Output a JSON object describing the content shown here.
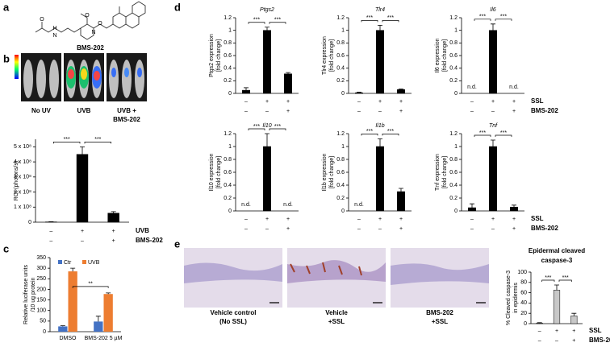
{
  "panel_labels": [
    "a",
    "b",
    "c",
    "d",
    "e"
  ],
  "structure": {
    "name": "BMS-202",
    "atoms": [
      "O",
      "N",
      "H",
      "O",
      "N",
      "O"
    ]
  },
  "b_images": [
    [
      "No UV"
    ],
    [
      "UVB"
    ],
    [
      "UVB +",
      "BMS-202"
    ]
  ],
  "e_images": [
    [
      "Vehicle control",
      "(No SSL)"
    ],
    [
      "Vehicle",
      "+SSL"
    ],
    [
      "BMS-202",
      "+SSL"
    ]
  ],
  "chart_data": [
    {
      "type": "bar",
      "y_label": [
        "ROI (photons/s)"
      ],
      "color": "#000000",
      "values": [
        2000000,
        450000000,
        60000000
      ],
      "errors": [
        1000000,
        50000000,
        10000000
      ],
      "ylim": [
        0,
        550000000
      ],
      "yticks": [
        0,
        {
          "value": 100000000,
          "label": "1 x 10⁸"
        },
        {
          "value": 200000000,
          "label": "2 x 10⁸"
        },
        {
          "value": 300000000,
          "label": "3 x 10⁸"
        },
        {
          "value": 400000000,
          "label": "4 x 10⁸"
        },
        {
          "value": 500000000,
          "label": "5 x 10⁸"
        }
      ],
      "annotations": [
        "***",
        "***"
      ],
      "conditions": [
        {
          "name": "UVB",
          "signs": [
            "–",
            "+",
            "+"
          ]
        },
        {
          "name": "BMS-202",
          "signs": [
            "–",
            "–",
            "+"
          ]
        }
      ]
    },
    {
      "type": "bar",
      "y_label": [
        "Relative luciferase units",
        "/10 ug protein"
      ],
      "categories": [
        "DMSO",
        "BMS-202 5 µM"
      ],
      "series": [
        {
          "name": "Ctr",
          "color": "#4472c4",
          "values": [
            25,
            48
          ],
          "errors": [
            3,
            25
          ]
        },
        {
          "name": "UVB",
          "color": "#ed7d31",
          "values": [
            285,
            178
          ],
          "errors": [
            15,
            5
          ]
        }
      ],
      "ylim": [
        0,
        350
      ],
      "yticks": [
        0,
        50,
        100,
        150,
        200,
        250,
        300,
        350
      ],
      "annotations": [
        "**"
      ]
    },
    {
      "type": "bar",
      "title": "Ptgs2",
      "y_label": [
        "Ptgs2 expression",
        "[fold change]"
      ],
      "color": "#000000",
      "values": [
        0.05,
        1,
        0.31
      ],
      "errors": [
        0.04,
        0.05,
        0.02
      ],
      "ylim": [
        0,
        1.2
      ],
      "yticks": [
        0,
        0.2,
        0.4,
        0.6,
        0.8,
        1,
        1.2
      ],
      "annotations": [
        "***",
        "***"
      ],
      "conditions": [
        {
          "signs": [
            "–",
            "+",
            "+"
          ]
        },
        {
          "signs": [
            "–",
            "–",
            "+"
          ]
        }
      ]
    },
    {
      "type": "bar",
      "title": "Tlr4",
      "y_label": [
        "Tlr4 expression",
        "[fold change]"
      ],
      "color": "#000000",
      "values": [
        0.01,
        1,
        0.06
      ],
      "errors": [
        0.01,
        0.08,
        0.01
      ],
      "ylim": [
        0,
        1.2
      ],
      "yticks": [
        0,
        0.2,
        0.4,
        0.6,
        0.8,
        1,
        1.2
      ],
      "annotations": [
        "***",
        "***"
      ],
      "conditions": [
        {
          "signs": [
            "–",
            "+",
            "+"
          ]
        },
        {
          "signs": [
            "–",
            "–",
            "+"
          ]
        }
      ]
    },
    {
      "type": "bar",
      "title": "Il6",
      "y_label": [
        "Il6 expression",
        "[fold change]"
      ],
      "color": "#000000",
      "values": [
        null,
        1,
        null
      ],
      "errors": [
        null,
        0.1,
        null
      ],
      "value_labels": [
        "n.d.",
        null,
        "n.d."
      ],
      "ylim": [
        0,
        1.2
      ],
      "yticks": [
        0,
        0.2,
        0.4,
        0.6,
        0.8,
        1,
        1.2
      ],
      "annotations": [
        "***",
        "***"
      ],
      "conditions": [
        {
          "name": "SSL",
          "signs": [
            "–",
            "+",
            "+"
          ]
        },
        {
          "name": "BMS-202",
          "signs": [
            "–",
            "–",
            "+"
          ]
        }
      ]
    },
    {
      "type": "bar",
      "title": "Il10",
      "y_label": [
        "Il10 expression",
        "[fold change]"
      ],
      "color": "#000000",
      "values": [
        null,
        1,
        null
      ],
      "errors": [
        null,
        0.2,
        null
      ],
      "value_labels": [
        "n.d.",
        null,
        "n.d."
      ],
      "ylim": [
        0,
        1.2
      ],
      "yticks": [
        0,
        0.2,
        0.4,
        0.6,
        0.8,
        1,
        1.2
      ],
      "annotations": [
        "***",
        "***"
      ],
      "conditions": [
        {
          "signs": [
            "–",
            "+",
            "+"
          ]
        },
        {
          "signs": [
            "–",
            "–",
            "+"
          ]
        }
      ]
    },
    {
      "type": "bar",
      "title": "Il1b",
      "y_label": [
        "Il1b expression",
        "[fold change]"
      ],
      "color": "#000000",
      "values": [
        null,
        1,
        0.3
      ],
      "errors": [
        null,
        0.12,
        0.05
      ],
      "value_labels": [
        "n.d.",
        null,
        null
      ],
      "ylim": [
        0,
        1.2
      ],
      "yticks": [
        0,
        0.2,
        0.4,
        0.6,
        0.8,
        1,
        1.2
      ],
      "annotations": [
        "***",
        "***"
      ],
      "conditions": [
        {
          "signs": [
            "–",
            "+",
            "+"
          ]
        },
        {
          "signs": [
            "–",
            "–",
            "+"
          ]
        }
      ]
    },
    {
      "type": "bar",
      "title": "Tnf",
      "y_label": [
        "Tnf expression",
        "[fold change]"
      ],
      "color": "#000000",
      "values": [
        0.05,
        1,
        0.06
      ],
      "errors": [
        0.06,
        0.1,
        0.03
      ],
      "ylim": [
        0,
        1.2
      ],
      "yticks": [
        0,
        0.2,
        0.4,
        0.6,
        0.8,
        1,
        1.2
      ],
      "annotations": [
        "***",
        "***"
      ],
      "conditions": [
        {
          "name": "SSL",
          "signs": [
            "–",
            "+",
            "+"
          ]
        },
        {
          "name": "BMS-202",
          "signs": [
            "–",
            "–",
            "+"
          ]
        }
      ]
    },
    {
      "type": "bar",
      "title": [
        "Epidermal cleaved",
        "caspase-3"
      ],
      "y_label": [
        "% Cleaved caspase-3",
        "in epidermis"
      ],
      "color": "#c8c8c8",
      "values": [
        1,
        65,
        15
      ],
      "errors": [
        1,
        10,
        5
      ],
      "ylim": [
        0,
        100
      ],
      "yticks": [
        0,
        20,
        40,
        60,
        80,
        100
      ],
      "annotations": [
        "***",
        "***"
      ],
      "conditions": [
        {
          "name": "SSL",
          "signs": [
            "–",
            "+",
            "+"
          ]
        },
        {
          "name": "BMS-202",
          "signs": [
            "–",
            "–",
            "+"
          ]
        }
      ]
    }
  ]
}
